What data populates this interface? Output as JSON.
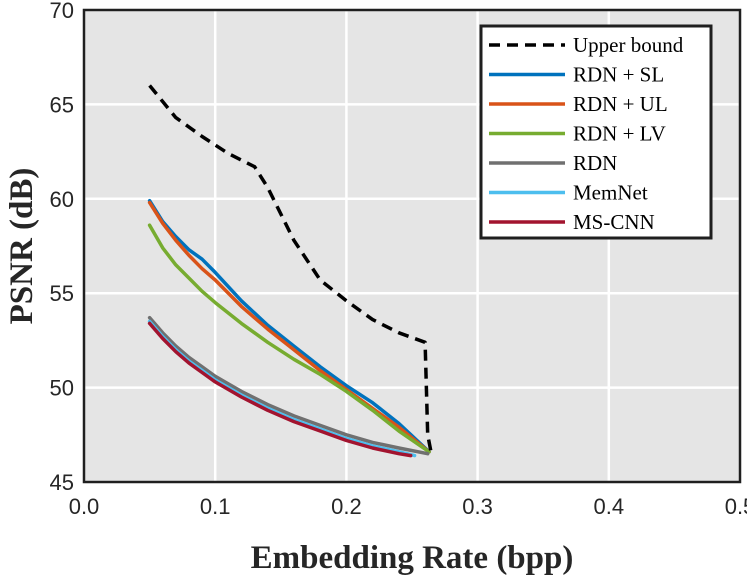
{
  "chart_data": {
    "type": "line",
    "title": "",
    "xlabel": "Embedding Rate (bpp)",
    "ylabel": "PSNR (dB)",
    "xlim": [
      0.0,
      0.5
    ],
    "ylim": [
      45,
      70
    ],
    "xticks": [
      "0.0",
      "0.1",
      "0.2",
      "0.3",
      "0.4",
      "0.5"
    ],
    "yticks": [
      "45",
      "50",
      "55",
      "60",
      "65",
      "70"
    ],
    "grid": true,
    "legend_position": "top-right",
    "series": [
      {
        "name": "Upper bound",
        "color": "#000000",
        "dashed": true,
        "x": [
          0.05,
          0.07,
          0.09,
          0.11,
          0.13,
          0.14,
          0.16,
          0.18,
          0.2,
          0.22,
          0.24,
          0.26,
          0.262,
          0.265
        ],
        "y": [
          66.0,
          64.3,
          63.3,
          62.4,
          61.7,
          60.6,
          57.8,
          55.7,
          54.6,
          53.6,
          52.9,
          52.4,
          47.5,
          46.4
        ]
      },
      {
        "name": "RDN + SL",
        "color": "#0072BD",
        "dashed": false,
        "x": [
          0.05,
          0.06,
          0.07,
          0.08,
          0.09,
          0.1,
          0.12,
          0.14,
          0.16,
          0.18,
          0.2,
          0.22,
          0.24,
          0.263
        ],
        "y": [
          59.9,
          58.8,
          58.0,
          57.3,
          56.8,
          56.1,
          54.6,
          53.3,
          52.2,
          51.1,
          50.1,
          49.2,
          48.1,
          46.6
        ]
      },
      {
        "name": "RDN + UL",
        "color": "#D95319",
        "dashed": false,
        "x": [
          0.05,
          0.06,
          0.07,
          0.08,
          0.09,
          0.1,
          0.12,
          0.14,
          0.16,
          0.18,
          0.2,
          0.22,
          0.24,
          0.263
        ],
        "y": [
          59.8,
          58.7,
          57.8,
          57.0,
          56.3,
          55.7,
          54.3,
          53.1,
          52.0,
          50.9,
          49.9,
          48.9,
          47.9,
          46.6
        ]
      },
      {
        "name": "RDN + LV",
        "color": "#77AC30",
        "dashed": false,
        "x": [
          0.05,
          0.06,
          0.07,
          0.08,
          0.09,
          0.1,
          0.12,
          0.14,
          0.16,
          0.18,
          0.2,
          0.22,
          0.24,
          0.263
        ],
        "y": [
          58.6,
          57.4,
          56.5,
          55.8,
          55.1,
          54.5,
          53.4,
          52.4,
          51.5,
          50.7,
          49.8,
          48.8,
          47.7,
          46.6
        ]
      },
      {
        "name": "RDN",
        "color": "#707070",
        "dashed": false,
        "x": [
          0.05,
          0.06,
          0.07,
          0.08,
          0.09,
          0.1,
          0.12,
          0.14,
          0.16,
          0.18,
          0.2,
          0.22,
          0.24,
          0.262
        ],
        "y": [
          53.7,
          52.9,
          52.2,
          51.6,
          51.1,
          50.6,
          49.8,
          49.1,
          48.5,
          48.0,
          47.5,
          47.1,
          46.8,
          46.5
        ]
      },
      {
        "name": "MemNet",
        "color": "#4DBEEE",
        "dashed": false,
        "x": [
          0.05,
          0.06,
          0.07,
          0.08,
          0.09,
          0.1,
          0.12,
          0.14,
          0.16,
          0.18,
          0.2,
          0.22,
          0.24,
          0.252
        ],
        "y": [
          53.5,
          52.7,
          52.0,
          51.4,
          50.9,
          50.4,
          49.6,
          48.9,
          48.3,
          47.8,
          47.3,
          46.9,
          46.6,
          46.4
        ]
      },
      {
        "name": "MS-CNN",
        "color": "#A2142F",
        "dashed": false,
        "x": [
          0.05,
          0.06,
          0.07,
          0.08,
          0.09,
          0.1,
          0.12,
          0.14,
          0.16,
          0.18,
          0.2,
          0.22,
          0.24,
          0.249
        ],
        "y": [
          53.4,
          52.6,
          51.9,
          51.3,
          50.8,
          50.3,
          49.5,
          48.8,
          48.2,
          47.7,
          47.2,
          46.8,
          46.5,
          46.4
        ]
      }
    ]
  }
}
